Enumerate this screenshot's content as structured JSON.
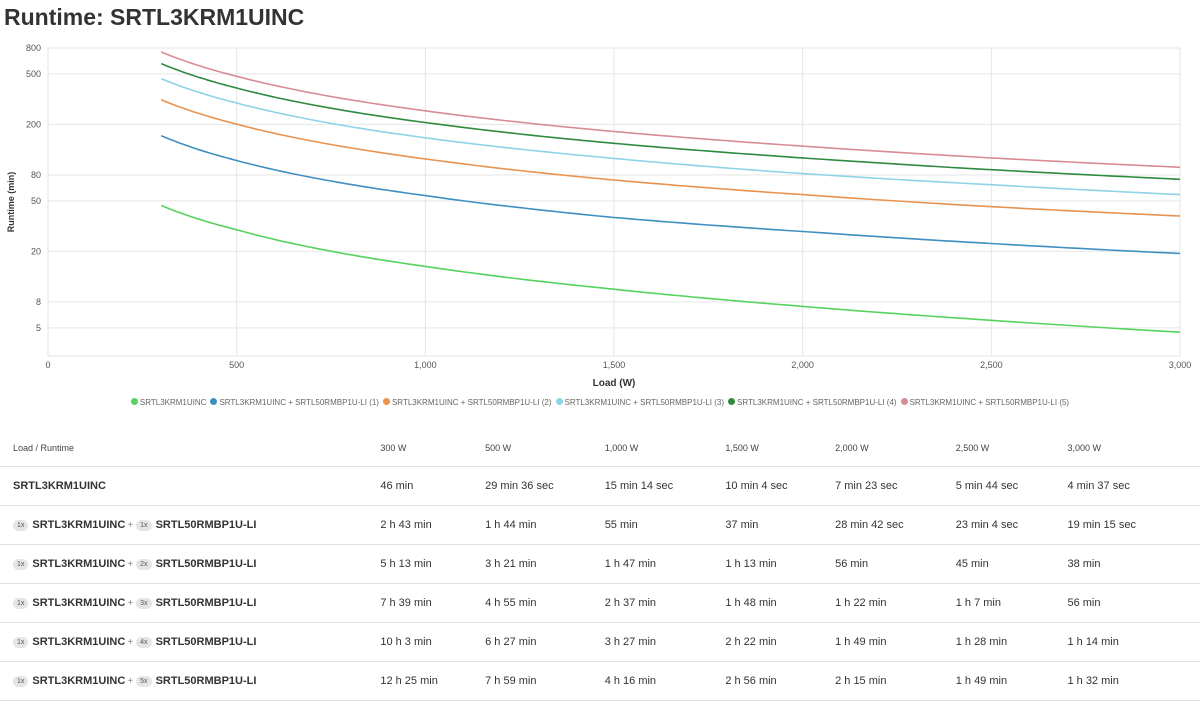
{
  "title": "Runtime: SRTL3KRM1UINC",
  "chart_data": {
    "type": "line",
    "xlabel": "Load (W)",
    "ylabel": "Runtime (min)",
    "xlim": [
      0,
      3000
    ],
    "ylim": [
      3,
      800
    ],
    "yscale": "log",
    "grid": true,
    "legend_position": "bottom",
    "x_ticks": [
      0,
      500,
      1000,
      1500,
      2000,
      2500,
      3000
    ],
    "x_tick_labels": [
      "0",
      "500",
      "1,000",
      "1,500",
      "2,000",
      "2,500",
      "3,000"
    ],
    "y_ticks": [
      5,
      8,
      20,
      50,
      80,
      200,
      500,
      800
    ],
    "y_tick_labels": [
      "5",
      "8",
      "20",
      "50",
      "80",
      "200",
      "500",
      "800"
    ],
    "x": [
      300,
      500,
      1000,
      1500,
      2000,
      2500,
      3000
    ],
    "series": [
      {
        "name": "SRTL3KRM1UINC",
        "color": "#55d35d",
        "values": [
          46,
          29.6,
          15.23,
          10.07,
          7.38,
          5.73,
          4.62
        ]
      },
      {
        "name": "SRTL3KRM1UINC + SRTL50RMBP1U-LI (1)",
        "color": "#3f8fc1",
        "values": [
          163,
          104,
          55,
          37,
          28.7,
          23.07,
          19.25
        ]
      },
      {
        "name": "SRTL3KRM1UINC + SRTL50RMBP1U-LI (2)",
        "color": "#e9934f",
        "values": [
          313,
          201,
          107,
          73,
          56,
          45,
          38
        ]
      },
      {
        "name": "SRTL3KRM1UINC + SRTL50RMBP1U-LI (3)",
        "color": "#8fd3e8",
        "values": [
          459,
          295,
          157,
          108,
          82,
          67,
          56
        ]
      },
      {
        "name": "SRTL3KRM1UINC + SRTL50RMBP1U-LI (4)",
        "color": "#2e8b3e",
        "values": [
          603,
          387,
          207,
          142,
          109,
          88,
          74
        ]
      },
      {
        "name": "SRTL3KRM1UINC + SRTL50RMBP1U-LI (5)",
        "color": "#d88c95",
        "values": [
          745,
          479,
          256,
          176,
          135,
          109,
          92
        ]
      }
    ]
  },
  "table": {
    "header_label": "Load / Runtime",
    "columns": [
      "300 W",
      "500 W",
      "1,000 W",
      "1,500 W",
      "2,000 W",
      "2,500 W",
      "3,000 W"
    ],
    "rows": [
      {
        "base": "SRTL3KRM1UINC",
        "base_qty": "",
        "addon": "",
        "addon_qty": "",
        "plus": "",
        "values": [
          "46 min",
          "29 min 36 sec",
          "15 min 14 sec",
          "10 min 4 sec",
          "7 min 23 sec",
          "5 min 44 sec",
          "4 min 37 sec"
        ]
      },
      {
        "base": "SRTL3KRM1UINC",
        "base_qty": "1x",
        "addon": "SRTL50RMBP1U-LI",
        "addon_qty": "1x",
        "plus": "+",
        "values": [
          "2 h 43 min",
          "1 h 44 min",
          "55 min",
          "37 min",
          "28 min 42 sec",
          "23 min 4 sec",
          "19 min 15 sec"
        ]
      },
      {
        "base": "SRTL3KRM1UINC",
        "base_qty": "1x",
        "addon": "SRTL50RMBP1U-LI",
        "addon_qty": "2x",
        "plus": "+",
        "values": [
          "5 h 13 min",
          "3 h 21 min",
          "1 h 47 min",
          "1 h 13 min",
          "56 min",
          "45 min",
          "38 min"
        ]
      },
      {
        "base": "SRTL3KRM1UINC",
        "base_qty": "1x",
        "addon": "SRTL50RMBP1U-LI",
        "addon_qty": "3x",
        "plus": "+",
        "values": [
          "7 h 39 min",
          "4 h 55 min",
          "2 h 37 min",
          "1 h 48 min",
          "1 h 22 min",
          "1 h 7 min",
          "56 min"
        ]
      },
      {
        "base": "SRTL3KRM1UINC",
        "base_qty": "1x",
        "addon": "SRTL50RMBP1U-LI",
        "addon_qty": "4x",
        "plus": "+",
        "values": [
          "10 h 3 min",
          "6 h 27 min",
          "3 h 27 min",
          "2 h 22 min",
          "1 h 49 min",
          "1 h 28 min",
          "1 h 14 min"
        ]
      },
      {
        "base": "SRTL3KRM1UINC",
        "base_qty": "1x",
        "addon": "SRTL50RMBP1U-LI",
        "addon_qty": "5x",
        "plus": "+",
        "values": [
          "12 h 25 min",
          "7 h 59 min",
          "4 h 16 min",
          "2 h 56 min",
          "2 h 15 min",
          "1 h 49 min",
          "1 h 32 min"
        ]
      }
    ]
  }
}
